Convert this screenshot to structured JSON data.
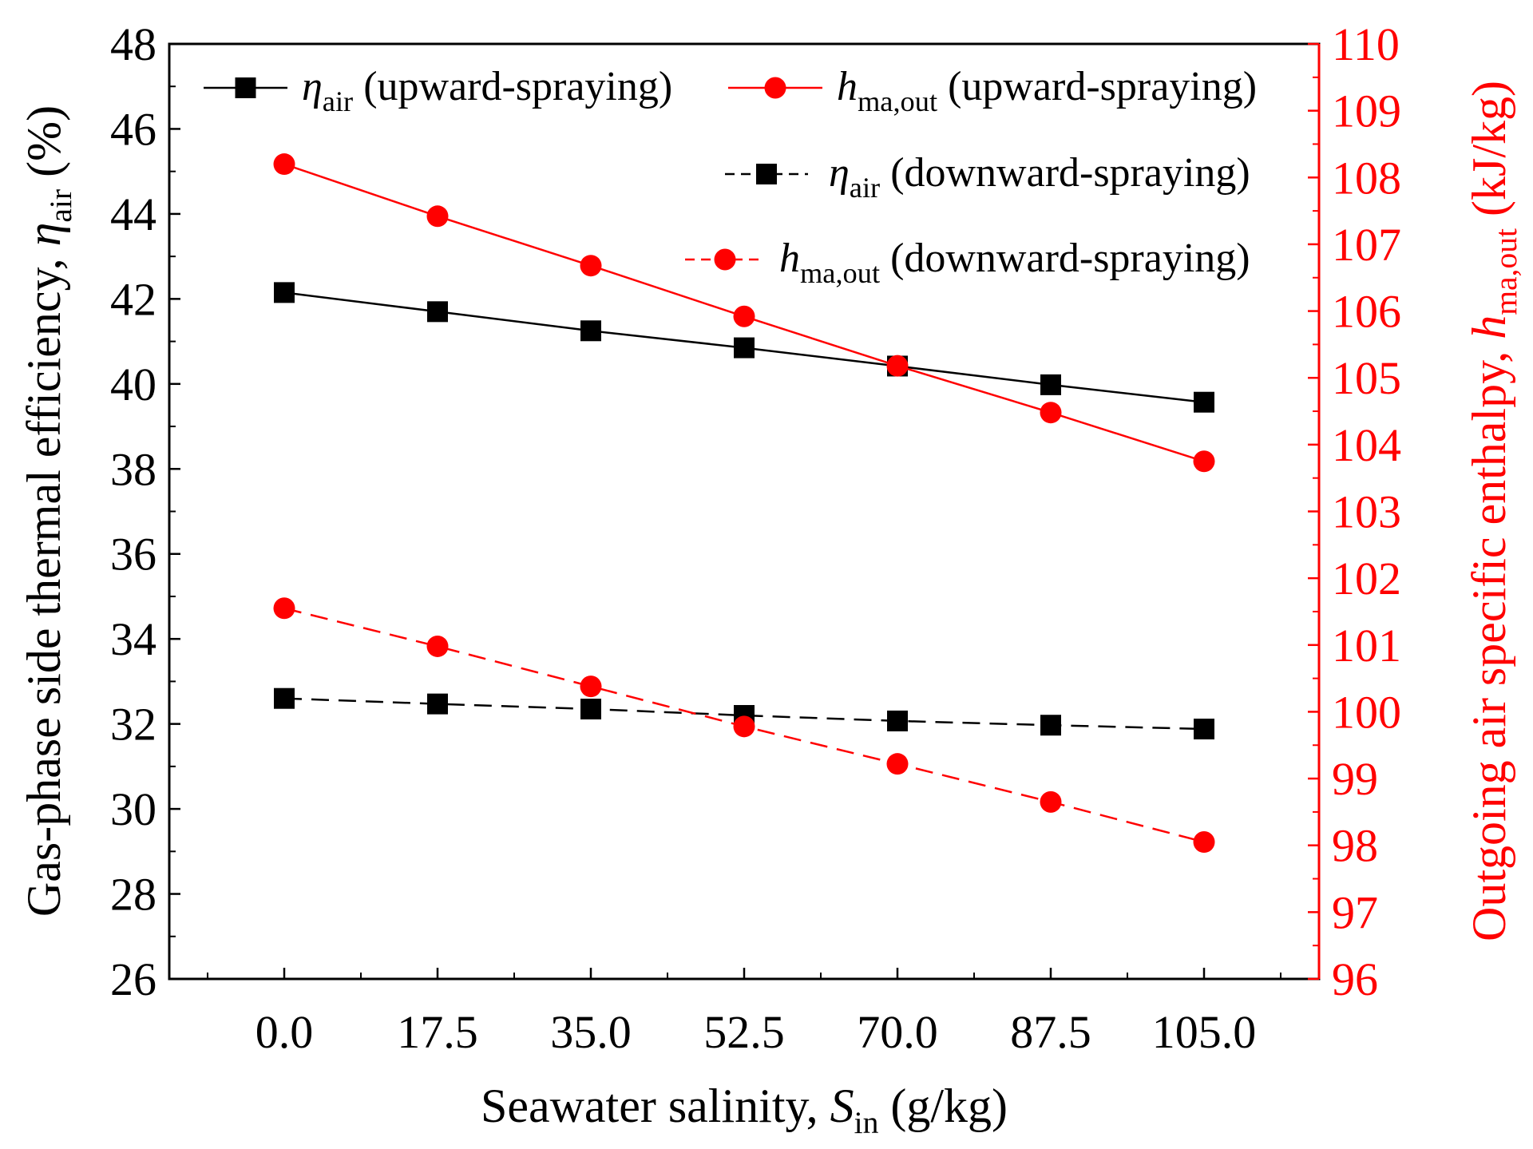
{
  "chart_data": {
    "type": "line",
    "x_axis": {
      "label_main": "Seawater salinity, ",
      "label_sym": "S",
      "label_sub": "in",
      "label_unit": " (g/kg)",
      "range": [
        -13.125,
        118.125
      ],
      "ticks": [
        0.0,
        17.5,
        35.0,
        52.5,
        70.0,
        87.5,
        105.0
      ],
      "tick_labels": [
        "0.0",
        "17.5",
        "35.0",
        "52.5",
        "70.0",
        "87.5",
        "105.0"
      ]
    },
    "y_left": {
      "label_main": "Gas-phase side thermal efficiency, ",
      "label_sym": "η",
      "label_sub": "air",
      "label_unit": " (%)",
      "range": [
        26,
        48
      ],
      "ticks": [
        26,
        28,
        30,
        32,
        34,
        36,
        38,
        40,
        42,
        44,
        46,
        48
      ],
      "tick_labels": [
        "26",
        "28",
        "30",
        "32",
        "34",
        "36",
        "38",
        "40",
        "42",
        "44",
        "46",
        "48"
      ]
    },
    "y_right": {
      "label_main": "Outgoing air specific enthalpy, ",
      "label_sym": "h",
      "label_sub": "ma,out",
      "label_unit": " (kJ/kg)",
      "range": [
        96,
        110
      ],
      "ticks": [
        96,
        97,
        98,
        99,
        100,
        101,
        102,
        103,
        104,
        105,
        106,
        107,
        108,
        109,
        110
      ],
      "tick_labels": [
        "96",
        "97",
        "98",
        "99",
        "100",
        "101",
        "102",
        "103",
        "104",
        "105",
        "106",
        "107",
        "108",
        "109",
        "110"
      ]
    },
    "x": [
      0.0,
      17.5,
      35.0,
      52.5,
      70.0,
      87.5,
      105.0
    ],
    "series": [
      {
        "name": "eta_air (upward-spraying)",
        "legend_sym": "η",
        "legend_sub": "air",
        "legend_text": " (upward-spraying)",
        "axis": "left",
        "color": "#000000",
        "marker": "square",
        "line": "solid",
        "values": [
          42.15,
          41.7,
          41.25,
          40.85,
          40.42,
          39.98,
          39.57
        ]
      },
      {
        "name": "h_ma,out (upward-spraying)",
        "legend_sym": "h",
        "legend_sub": "ma,out",
        "legend_text": " (upward-spraying)",
        "axis": "right",
        "color": "#ff0000",
        "marker": "circle",
        "line": "solid",
        "values": [
          108.2,
          107.42,
          106.68,
          105.92,
          105.18,
          104.48,
          103.75
        ]
      },
      {
        "name": "eta_air (downward-spraying)",
        "legend_sym": "η",
        "legend_sub": "air",
        "legend_text": " (downward-spraying)",
        "axis": "left",
        "color": "#000000",
        "marker": "square",
        "line": "dashed",
        "values": [
          32.6,
          32.47,
          32.35,
          32.2,
          32.07,
          31.97,
          31.88
        ]
      },
      {
        "name": "h_ma,out (downward-spraying)",
        "legend_sym": "h",
        "legend_sub": "ma,out",
        "legend_text": " (downward-spraying)",
        "axis": "right",
        "color": "#ff0000",
        "marker": "circle",
        "line": "dashed",
        "values": [
          101.55,
          100.98,
          100.38,
          99.78,
          99.22,
          98.65,
          98.05
        ]
      }
    ]
  }
}
